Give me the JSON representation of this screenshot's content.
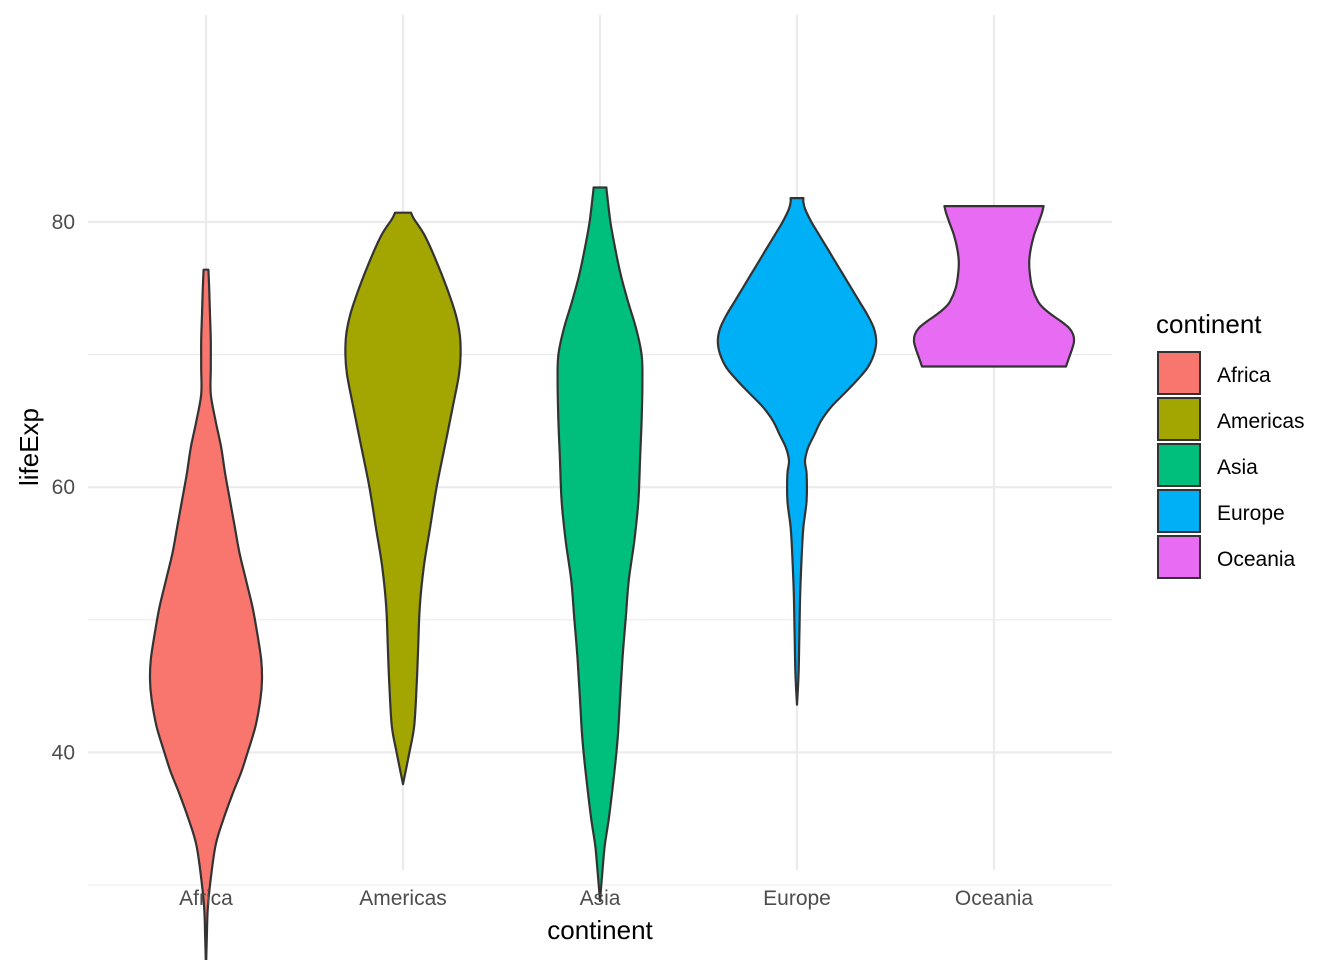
{
  "chart_data": {
    "type": "violin",
    "xlabel": "continent",
    "ylabel": "lifeExp",
    "ylim": [
      22,
      86
    ],
    "yticks": [
      40,
      60,
      80
    ],
    "yticks_minor": [
      30,
      50,
      70
    ],
    "categories": [
      "Africa",
      "Americas",
      "Asia",
      "Europe",
      "Oceania"
    ],
    "legend": {
      "title": "continent",
      "position": "right"
    },
    "grid": true,
    "series": [
      {
        "name": "Africa",
        "color": "#F8766D",
        "min": 23.6,
        "max": 76.4,
        "profile": [
          [
            23.6,
            0.0
          ],
          [
            26,
            0.01
          ],
          [
            28,
            0.02
          ],
          [
            30,
            0.05
          ],
          [
            33,
            0.12
          ],
          [
            35,
            0.22
          ],
          [
            37,
            0.34
          ],
          [
            38.5,
            0.44
          ],
          [
            40,
            0.52
          ],
          [
            42,
            0.62
          ],
          [
            44,
            0.68
          ],
          [
            45.5,
            0.7
          ],
          [
            47,
            0.69
          ],
          [
            49,
            0.64
          ],
          [
            51,
            0.58
          ],
          [
            53,
            0.5
          ],
          [
            55,
            0.42
          ],
          [
            57,
            0.36
          ],
          [
            59,
            0.3
          ],
          [
            61,
            0.24
          ],
          [
            63,
            0.19
          ],
          [
            65,
            0.12
          ],
          [
            67,
            0.06
          ],
          [
            69,
            0.06
          ],
          [
            71,
            0.06
          ],
          [
            73,
            0.05
          ],
          [
            75,
            0.04
          ],
          [
            76.4,
            0.03
          ]
        ]
      },
      {
        "name": "Americas",
        "color": "#A3A500",
        "min": 37.6,
        "max": 80.7,
        "profile": [
          [
            37.6,
            0.0
          ],
          [
            40,
            0.08
          ],
          [
            42,
            0.14
          ],
          [
            45,
            0.17
          ],
          [
            48,
            0.19
          ],
          [
            51,
            0.21
          ],
          [
            54,
            0.26
          ],
          [
            57,
            0.34
          ],
          [
            60,
            0.42
          ],
          [
            63,
            0.52
          ],
          [
            66,
            0.62
          ],
          [
            68.5,
            0.7
          ],
          [
            70,
            0.72
          ],
          [
            71.5,
            0.71
          ],
          [
            73,
            0.66
          ],
          [
            75,
            0.55
          ],
          [
            77,
            0.42
          ],
          [
            79,
            0.27
          ],
          [
            80.2,
            0.14
          ],
          [
            80.7,
            0.1
          ]
        ]
      },
      {
        "name": "Asia",
        "color": "#00BF7D",
        "min": 28.8,
        "max": 82.6,
        "profile": [
          [
            28.8,
            0.0
          ],
          [
            31,
            0.03
          ],
          [
            33,
            0.06
          ],
          [
            35,
            0.11
          ],
          [
            38,
            0.17
          ],
          [
            41,
            0.22
          ],
          [
            44,
            0.25
          ],
          [
            47,
            0.28
          ],
          [
            50,
            0.32
          ],
          [
            53,
            0.36
          ],
          [
            56,
            0.43
          ],
          [
            59,
            0.48
          ],
          [
            62,
            0.5
          ],
          [
            65,
            0.52
          ],
          [
            68,
            0.53
          ],
          [
            70,
            0.52
          ],
          [
            72,
            0.45
          ],
          [
            74,
            0.35
          ],
          [
            76,
            0.26
          ],
          [
            78,
            0.19
          ],
          [
            80,
            0.13
          ],
          [
            82,
            0.09
          ],
          [
            82.6,
            0.08
          ]
        ]
      },
      {
        "name": "Europe",
        "color": "#00B0F6",
        "min": 43.6,
        "max": 81.8,
        "profile": [
          [
            43.6,
            0.0
          ],
          [
            46,
            0.02
          ],
          [
            49,
            0.03
          ],
          [
            52,
            0.04
          ],
          [
            55,
            0.06
          ],
          [
            57,
            0.08
          ],
          [
            59,
            0.12
          ],
          [
            61,
            0.12
          ],
          [
            62,
            0.1
          ],
          [
            63,
            0.14
          ],
          [
            64,
            0.22
          ],
          [
            65,
            0.3
          ],
          [
            66,
            0.42
          ],
          [
            67,
            0.58
          ],
          [
            68,
            0.74
          ],
          [
            69,
            0.88
          ],
          [
            70,
            0.96
          ],
          [
            71,
            0.99
          ],
          [
            72,
            0.96
          ],
          [
            73,
            0.88
          ],
          [
            74,
            0.78
          ],
          [
            75,
            0.68
          ],
          [
            76,
            0.58
          ],
          [
            77,
            0.48
          ],
          [
            78,
            0.38
          ],
          [
            79,
            0.28
          ],
          [
            80,
            0.18
          ],
          [
            81,
            0.1
          ],
          [
            81.5,
            0.08
          ],
          [
            81.8,
            0.08
          ]
        ]
      },
      {
        "name": "Oceania",
        "color": "#E76BF3",
        "min": 69.1,
        "max": 81.2,
        "profile": [
          [
            69.1,
            0.9
          ],
          [
            69.8,
            0.94
          ],
          [
            70.5,
            0.98
          ],
          [
            71,
            1.0
          ],
          [
            71.5,
            0.99
          ],
          [
            72,
            0.94
          ],
          [
            72.5,
            0.84
          ],
          [
            73,
            0.72
          ],
          [
            73.5,
            0.62
          ],
          [
            74,
            0.55
          ],
          [
            75,
            0.48
          ],
          [
            76,
            0.45
          ],
          [
            77,
            0.44
          ],
          [
            78,
            0.46
          ],
          [
            79,
            0.5
          ],
          [
            80,
            0.56
          ],
          [
            80.7,
            0.6
          ],
          [
            81.2,
            0.62
          ]
        ]
      }
    ]
  }
}
